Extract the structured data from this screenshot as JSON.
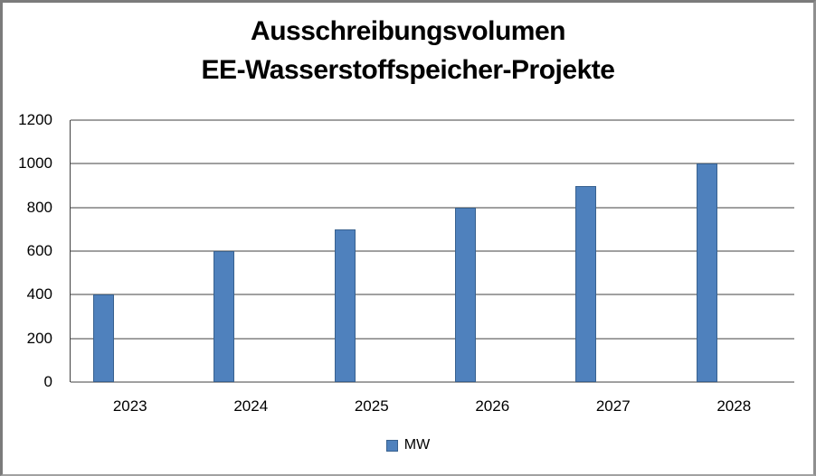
{
  "header": {
    "title_line1": "Ausschreibungsvolumen",
    "title_line2": "EE-Wasserstoffspeicher-Projekte"
  },
  "chart_data": {
    "type": "bar",
    "title": "Ausschreibungsvolumen EE-Wasserstoffspeicher-Projekte",
    "categories": [
      "2023",
      "2024",
      "2025",
      "2026",
      "2027",
      "2028"
    ],
    "series": [
      {
        "name": "MW",
        "values": [
          400,
          600,
          700,
          800,
          900,
          1000
        ]
      }
    ],
    "xlabel": "",
    "ylabel": "",
    "ylim": [
      0,
      1200
    ],
    "yticks": [
      0,
      200,
      400,
      600,
      800,
      1000,
      1200
    ],
    "grid": true,
    "legend_position": "bottom-center",
    "colors": {
      "bar_fill": "#4F81BD",
      "bar_border": "#38618F",
      "gridline": "#404040",
      "axis_line": "#404040",
      "text": "#000000"
    },
    "layout_hints": {
      "bar_offset_fraction_of_slot": 0.187,
      "bar_width_fraction_of_slot": 0.172
    }
  }
}
